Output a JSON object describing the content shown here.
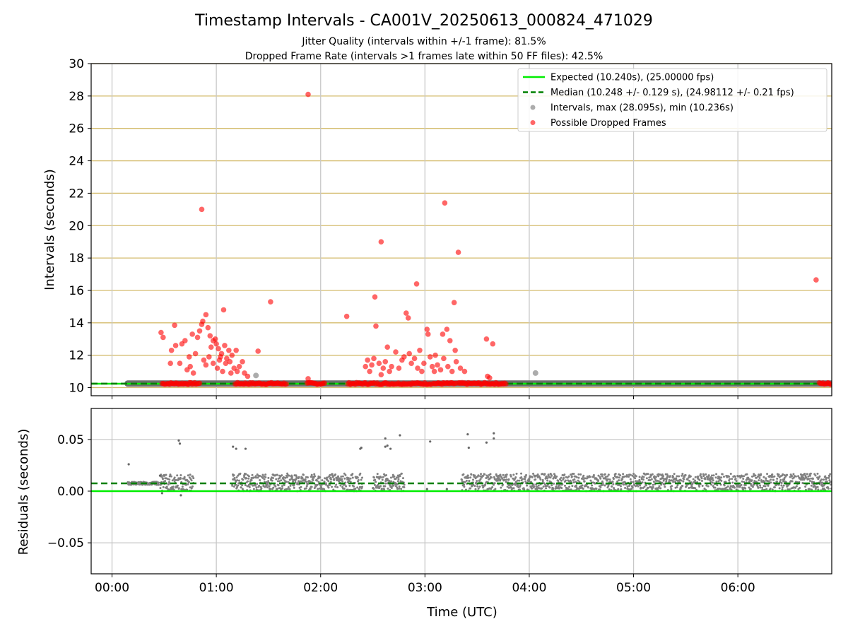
{
  "figure": {
    "title": "Timestamp Intervals - CA001V_20250613_000824_471029",
    "subtitle_1": "Jitter Quality (intervals within +/-1 frame): 81.5%",
    "subtitle_2": "Dropped Frame Rate (intervals >1 frames late within 50 FF files): 42.5%",
    "colors": {
      "expected": "#00ee00",
      "median": "#008000",
      "intervals": "#808080",
      "dropped": "#ff0000",
      "hgrid_top": "#d4bc6e",
      "grid": "#c8c8c8"
    }
  },
  "chart_data": [
    {
      "type": "scatter",
      "panel": "top",
      "xlabel": "",
      "ylabel": "Intervals (seconds)",
      "xlim": [
        -0.2,
        6.9
      ],
      "ylim": [
        9.5,
        30
      ],
      "yticks": [
        10,
        12,
        14,
        16,
        18,
        20,
        22,
        24,
        26,
        28,
        30
      ],
      "xticks": [
        0,
        1,
        2,
        3,
        4,
        5,
        6
      ],
      "grid": true,
      "legend_position": "top-right",
      "expected_value": 10.24,
      "median_value": 10.248,
      "legend": [
        "Expected (10.240s), (25.00000 fps)",
        "Median (10.248 +/- 0.129 s), (24.98112 +/- 0.21 fps)",
        "Intervals, max (28.095s), min (10.236s)",
        "Possible Dropped Frames"
      ],
      "baseline_band": {
        "x": [
          0.15,
          6.9
        ],
        "y": 10.25
      },
      "series": [
        {
          "name": "Intervals, max (28.095s), min (10.236s)",
          "points": [
            [
              1.38,
              10.75
            ],
            [
              4.06,
              10.9
            ]
          ]
        },
        {
          "name": "Possible Dropped Frames",
          "points": [
            [
              0.47,
              13.4
            ],
            [
              0.49,
              13.1
            ],
            [
              0.6,
              13.85
            ],
            [
              0.61,
              12.6
            ],
            [
              0.56,
              11.5
            ],
            [
              0.57,
              12.3
            ],
            [
              0.65,
              11.5
            ],
            [
              0.67,
              12.7
            ],
            [
              0.7,
              12.9
            ],
            [
              0.72,
              11.1
            ],
            [
              0.74,
              11.9
            ],
            [
              0.77,
              13.3
            ],
            [
              0.8,
              12.1
            ],
            [
              0.82,
              13.1
            ],
            [
              0.84,
              13.5
            ],
            [
              0.86,
              13.9
            ],
            [
              0.87,
              14.1
            ],
            [
              0.9,
              14.5
            ],
            [
              0.86,
              21.0
            ],
            [
              0.92,
              13.7
            ],
            [
              0.94,
              13.2
            ],
            [
              0.95,
              12.5
            ],
            [
              0.97,
              12.9
            ],
            [
              0.99,
              13.0
            ],
            [
              1.0,
              12.7
            ],
            [
              1.02,
              12.4
            ],
            [
              1.04,
              11.9
            ],
            [
              1.05,
              12.1
            ],
            [
              1.07,
              14.8
            ],
            [
              1.08,
              12.6
            ],
            [
              1.1,
              11.8
            ],
            [
              1.12,
              12.3
            ],
            [
              1.13,
              11.6
            ],
            [
              1.15,
              12.0
            ],
            [
              1.17,
              11.2
            ],
            [
              1.19,
              12.3
            ],
            [
              1.22,
              11.3
            ],
            [
              1.25,
              11.6
            ],
            [
              1.27,
              10.9
            ],
            [
              1.3,
              10.7
            ],
            [
              0.75,
              11.3
            ],
            [
              0.78,
              10.9
            ],
            [
              0.88,
              11.7
            ],
            [
              0.9,
              11.4
            ],
            [
              0.93,
              11.9
            ],
            [
              0.97,
              11.5
            ],
            [
              1.01,
              11.2
            ],
            [
              1.03,
              11.7
            ],
            [
              1.06,
              11.0
            ],
            [
              1.09,
              11.5
            ],
            [
              1.14,
              10.9
            ],
            [
              1.2,
              11.0
            ],
            [
              1.52,
              15.3
            ],
            [
              1.4,
              12.25
            ],
            [
              1.88,
              28.1
            ],
            [
              1.88,
              10.55
            ],
            [
              2.25,
              14.4
            ],
            [
              2.43,
              11.3
            ],
            [
              2.45,
              11.7
            ],
            [
              2.47,
              11.0
            ],
            [
              2.49,
              11.4
            ],
            [
              2.51,
              11.8
            ],
            [
              2.53,
              13.8
            ],
            [
              2.52,
              15.6
            ],
            [
              2.56,
              11.5
            ],
            [
              2.58,
              10.8
            ],
            [
              2.58,
              19.0
            ],
            [
              2.6,
              11.2
            ],
            [
              2.62,
              11.6
            ],
            [
              2.64,
              12.5
            ],
            [
              2.66,
              11.0
            ],
            [
              2.68,
              11.3
            ],
            [
              2.72,
              12.2
            ],
            [
              2.75,
              11.2
            ],
            [
              2.78,
              11.7
            ],
            [
              2.8,
              11.9
            ],
            [
              2.82,
              14.6
            ],
            [
              2.84,
              14.3
            ],
            [
              2.85,
              12.1
            ],
            [
              2.87,
              11.5
            ],
            [
              2.9,
              11.8
            ],
            [
              2.92,
              16.4
            ],
            [
              2.93,
              11.2
            ],
            [
              2.95,
              12.3
            ],
            [
              2.97,
              11.0
            ],
            [
              2.99,
              11.5
            ],
            [
              3.02,
              13.6
            ],
            [
              3.03,
              13.3
            ],
            [
              3.05,
              11.9
            ],
            [
              3.07,
              11.3
            ],
            [
              3.09,
              11.0
            ],
            [
              3.1,
              12.0
            ],
            [
              3.12,
              11.4
            ],
            [
              3.15,
              11.1
            ],
            [
              3.17,
              13.3
            ],
            [
              3.18,
              11.8
            ],
            [
              3.19,
              21.4
            ],
            [
              3.21,
              13.6
            ],
            [
              3.22,
              11.3
            ],
            [
              3.24,
              12.9
            ],
            [
              3.26,
              11.0
            ],
            [
              3.28,
              15.25
            ],
            [
              3.29,
              12.3
            ],
            [
              3.3,
              11.6
            ],
            [
              3.32,
              18.35
            ],
            [
              3.34,
              11.2
            ],
            [
              3.38,
              11.0
            ],
            [
              3.59,
              13.0
            ],
            [
              3.65,
              12.7
            ],
            [
              3.6,
              10.7
            ],
            [
              3.62,
              10.6
            ],
            [
              6.75,
              16.65
            ]
          ],
          "low_bands": [
            [
              0.48,
              0.85
            ],
            [
              1.18,
              1.68
            ],
            [
              1.87,
              2.05
            ],
            [
              2.26,
              2.52
            ],
            [
              2.53,
              2.82
            ],
            [
              2.83,
              3.07
            ],
            [
              3.08,
              3.3
            ],
            [
              3.32,
              3.78
            ],
            [
              6.78,
              6.9
            ]
          ]
        }
      ]
    },
    {
      "type": "scatter",
      "panel": "bottom",
      "xlabel": "Time (UTC)",
      "ylabel": "Residuals (seconds)",
      "xlim": [
        -0.2,
        6.9
      ],
      "ylim": [
        -0.08,
        0.08
      ],
      "yticks": [
        -0.05,
        0.0,
        0.05
      ],
      "ytick_labels": [
        "−0.05",
        "0.00",
        "0.05"
      ],
      "xticks": [
        0,
        1,
        2,
        3,
        4,
        5,
        6
      ],
      "xtick_labels": [
        "00:00",
        "01:00",
        "02:00",
        "03:00",
        "04:00",
        "05:00",
        "06:00"
      ],
      "grid": true,
      "expected_value": 0.0,
      "median_value": 0.0075,
      "series": [
        {
          "name": "",
          "outliers": [
            [
              0.16,
              0.026
            ],
            [
              0.46,
              0.015
            ],
            [
              0.64,
              0.049
            ],
            [
              0.65,
              0.046
            ],
            [
              0.66,
              -0.004
            ],
            [
              0.48,
              -0.002
            ],
            [
              1.16,
              0.043
            ],
            [
              1.19,
              0.041
            ],
            [
              1.28,
              0.041
            ],
            [
              2.38,
              0.041
            ],
            [
              2.39,
              0.042
            ],
            [
              2.62,
              0.051
            ],
            [
              2.62,
              0.043
            ],
            [
              2.64,
              0.044
            ],
            [
              2.67,
              0.041
            ],
            [
              2.76,
              0.054
            ],
            [
              3.05,
              0.048
            ],
            [
              3.41,
              0.055
            ],
            [
              3.42,
              0.042
            ],
            [
              3.59,
              0.047
            ],
            [
              3.66,
              0.051
            ],
            [
              3.66,
              0.056
            ],
            [
              3.02,
              0.002
            ],
            [
              3.21,
              0.002
            ]
          ],
          "bands": [
            [
              0.15,
              0.45,
              0.006,
              0.009
            ],
            [
              0.46,
              0.78,
              0.0,
              0.016
            ],
            [
              1.15,
              2.4,
              0.0,
              0.017
            ],
            [
              2.5,
              2.8,
              0.0,
              0.017
            ],
            [
              3.35,
              6.9,
              0.0,
              0.017
            ]
          ]
        }
      ]
    }
  ]
}
